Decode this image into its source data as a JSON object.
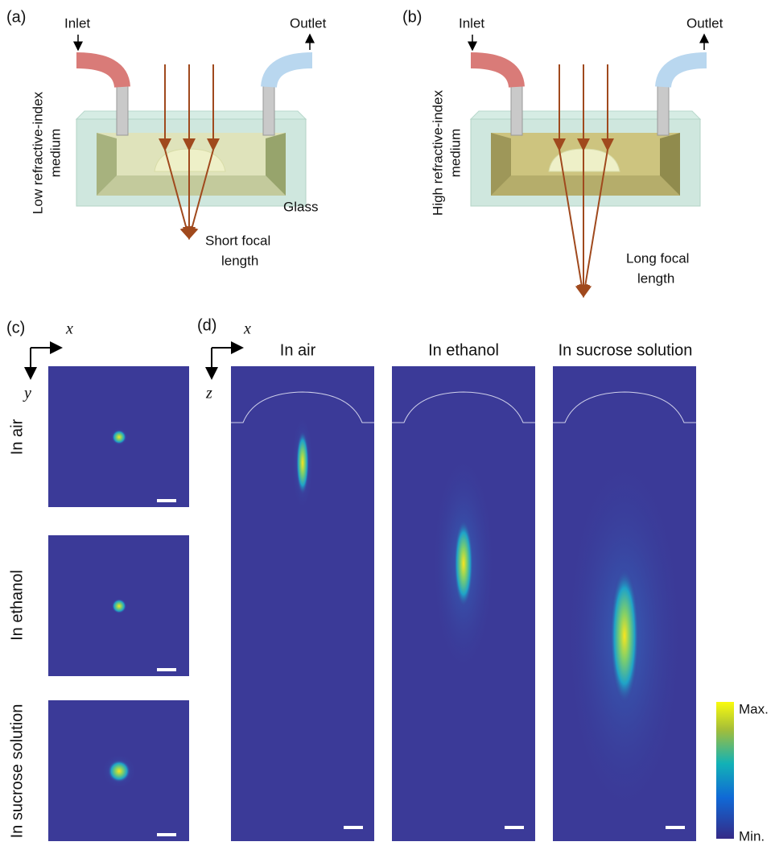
{
  "panel_a": {
    "label": "(a)",
    "inlet": "Inlet",
    "outlet": "Outlet",
    "medium": [
      "Low refractive-index",
      "medium"
    ],
    "glass": "Glass",
    "focal": [
      "Short focal",
      "length"
    ]
  },
  "panel_b": {
    "label": "(b)",
    "inlet": "Inlet",
    "outlet": "Outlet",
    "medium": [
      "High refractive-index",
      "medium"
    ],
    "focal": [
      "Long focal",
      "length"
    ]
  },
  "panel_c": {
    "label": "(c)",
    "axes": [
      "x",
      "y"
    ],
    "rows": [
      "In air",
      "In ethanol",
      "In sucrose solution"
    ]
  },
  "panel_d": {
    "label": "(d)",
    "axes": [
      "x",
      "z"
    ],
    "columns": [
      "In air",
      "In ethanol",
      "In sucrose solution"
    ],
    "colorbar": {
      "max": "Max.",
      "min": "Min."
    }
  }
}
